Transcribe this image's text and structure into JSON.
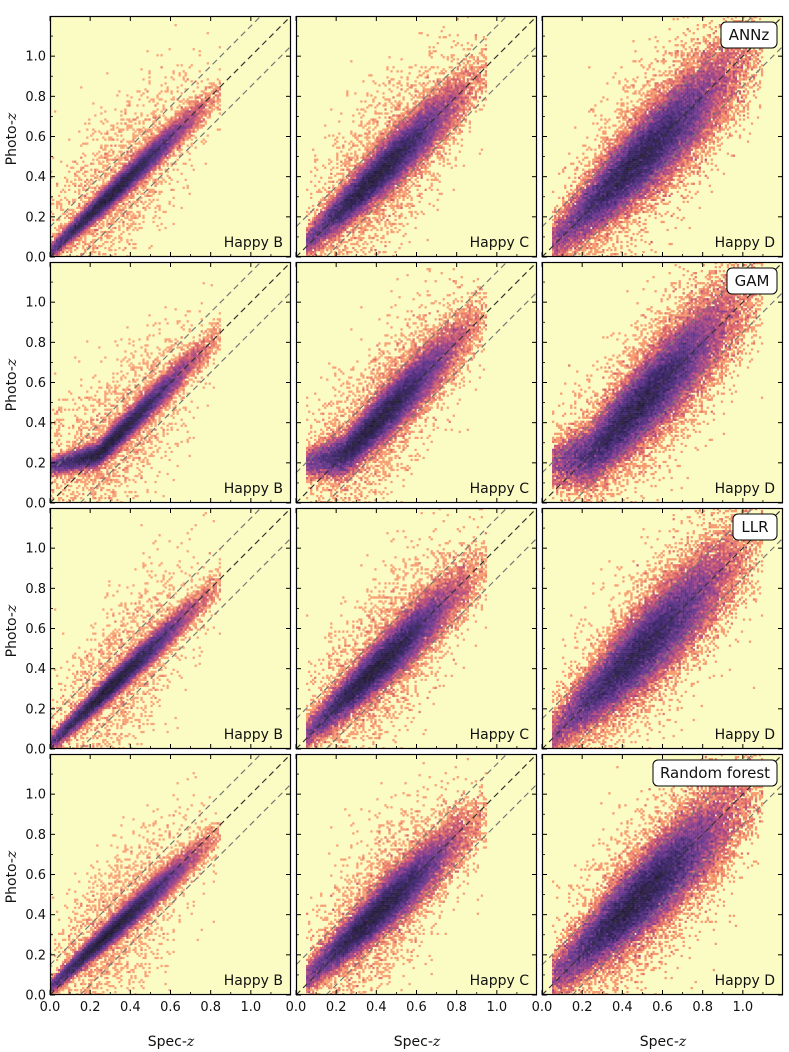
{
  "chart_data": {
    "type": "heatmap",
    "title": "",
    "description_source": "2D histograms of photometric vs spectroscopic redshift, 4 methods x 3 samples",
    "xlabel": {
      "base": "Spec-",
      "var": "z"
    },
    "ylabel": {
      "base": "Photo-",
      "var": "z"
    },
    "xlim": [
      0.0,
      1.2
    ],
    "ylim": [
      0.0,
      1.2
    ],
    "x_ticks": [
      "0.0",
      "0.2",
      "0.4",
      "0.6",
      "0.8",
      "1.0"
    ],
    "y_ticks": [
      "0.0",
      "0.2",
      "0.4",
      "0.6",
      "0.8",
      "1.0"
    ],
    "reference_lines": {
      "identity_slope": 1,
      "offset": 0.15
    },
    "colormap": {
      "background": "#fbfcc4",
      "stops": [
        "#fbfcc4",
        "#fbd3a5",
        "#f8996f",
        "#d7606e",
        "#a2488e",
        "#6a3c93",
        "#3d2a6a",
        "#211a2e"
      ]
    },
    "methods": [
      "ANNz",
      "GAM",
      "LLR",
      "Random forest"
    ],
    "samples": [
      "Happy B",
      "Happy C",
      "Happy D"
    ]
  }
}
